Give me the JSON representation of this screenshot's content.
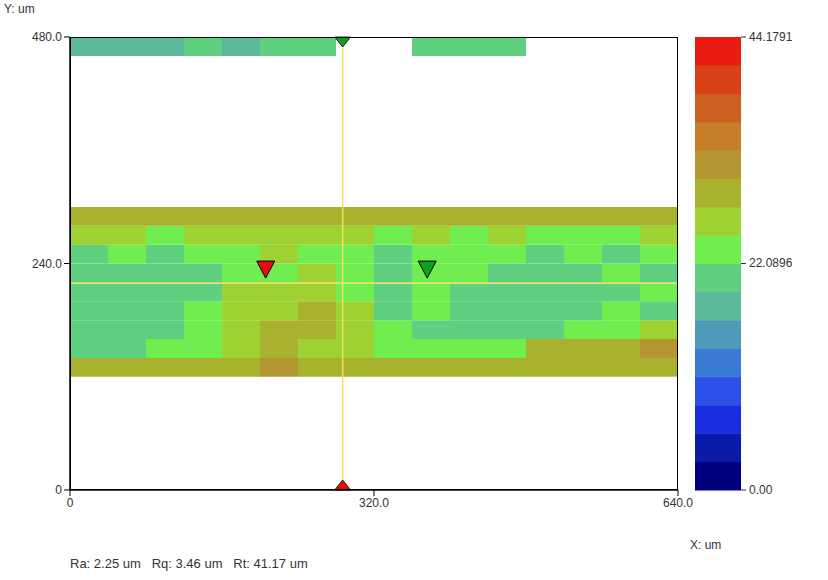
{
  "chart_data": {
    "type": "heatmap",
    "x_label": "X: um",
    "y_label": "Y: um",
    "annotations": [
      "Ra: 2.25 um   Rq: 3.46 um   Rt: 41.17 um"
    ],
    "xlim": [
      0,
      640
    ],
    "xticks": [
      0,
      {
        "value": 320,
        "label": "320.0"
      },
      {
        "value": 640,
        "label": "640.0"
      }
    ],
    "ylim": [
      0,
      480
    ],
    "yticks": [
      0,
      {
        "value": 240,
        "label": "240.0"
      },
      {
        "value": 480,
        "label": "480.0"
      }
    ],
    "grid": false,
    "x": [
      20,
      60,
      100,
      140,
      180,
      220,
      260,
      300,
      340,
      380,
      420,
      460,
      500,
      540,
      580,
      620
    ],
    "y": [
      130,
      150,
      170,
      190,
      210,
      230,
      250,
      270,
      290,
      470
    ],
    "cells": [
      [
        29,
        28,
        30,
        28,
        29,
        31,
        28,
        29,
        28,
        30,
        28,
        29,
        30,
        28,
        29,
        28
      ],
      [
        22,
        21,
        23,
        24,
        27,
        28,
        27,
        26,
        24,
        23,
        23,
        24,
        28,
        29,
        30,
        31
      ],
      [
        21,
        20,
        22,
        24,
        27,
        28,
        28,
        26,
        23,
        22,
        22,
        21,
        22,
        23,
        24,
        26
      ],
      [
        20,
        21,
        22,
        23,
        26,
        27,
        28,
        27,
        22,
        23,
        22,
        20,
        20,
        22,
        23,
        22
      ],
      [
        21,
        22,
        20,
        22,
        25,
        26,
        27,
        24,
        22,
        23,
        22,
        21,
        20,
        21,
        22,
        23
      ],
      [
        20,
        20,
        21,
        22,
        23,
        24,
        25,
        23,
        22,
        23,
        23,
        22,
        21,
        22,
        23,
        22
      ],
      [
        22,
        23,
        22,
        23,
        24,
        25,
        24,
        23,
        22,
        23,
        24,
        23,
        22,
        23,
        22,
        23
      ],
      [
        26,
        25,
        24,
        25,
        26,
        25,
        26,
        25,
        24,
        25,
        24,
        25,
        24,
        23,
        24,
        25
      ],
      [
        29,
        28,
        29,
        30,
        28,
        29,
        30,
        29,
        28,
        29,
        30,
        29,
        28,
        29,
        28,
        29
      ],
      [
        19,
        18,
        19,
        20,
        19,
        20,
        21,
        null,
        null,
        20,
        21,
        20,
        null,
        null,
        null,
        null
      ]
    ],
    "colorbar": {
      "range": [
        0,
        44.1791
      ],
      "ticks": [
        {
          "value": 0,
          "label": "0.00"
        },
        22.0896,
        44.1791
      ],
      "colors": [
        "#00007f",
        "#0a1aa8",
        "#1a2ee0",
        "#2c50e8",
        "#3c7ad8",
        "#4e9aba",
        "#5cb89a",
        "#5ed080",
        "#70ee50",
        "#9ed232",
        "#a8b22e",
        "#b49632",
        "#c47e2a",
        "#cc6020",
        "#d84018",
        "#e81c10"
      ]
    },
    "cursor": {
      "x": 287,
      "y": 219
    },
    "markers": [
      {
        "x": 206,
        "y": 233,
        "color": "#e01010"
      },
      {
        "x": 376,
        "y": 233,
        "color": "#10a020"
      }
    ]
  }
}
